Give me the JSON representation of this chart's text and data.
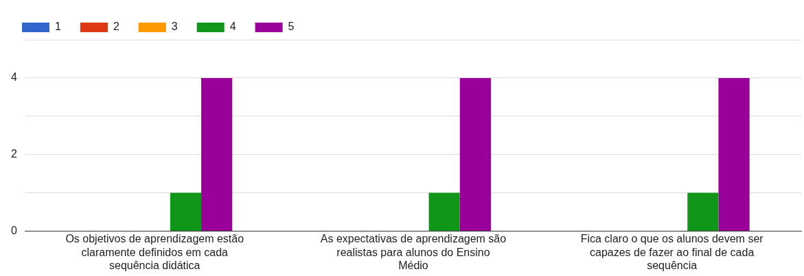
{
  "chart_data": {
    "type": "bar",
    "categories": [
      "Os objetivos de aprendizagem estão claramente definidos em cada sequência didática",
      "As expectativas de aprendizagem são realistas para alunos do Ensino Médio",
      "Fica claro o que os alunos devem ser capazes de fazer ao final de cada sequência"
    ],
    "series": [
      {
        "name": "1",
        "color": "#3366cc",
        "values": [
          0,
          0,
          0
        ]
      },
      {
        "name": "2",
        "color": "#dc3912",
        "values": [
          0,
          0,
          0
        ]
      },
      {
        "name": "3",
        "color": "#ff9900",
        "values": [
          0,
          0,
          0
        ]
      },
      {
        "name": "4",
        "color": "#109618",
        "values": [
          1,
          1,
          1
        ]
      },
      {
        "name": "5",
        "color": "#990099",
        "values": [
          4,
          4,
          4
        ]
      }
    ],
    "ylim": [
      0,
      5
    ],
    "yticks": [
      0,
      {
        "value": 1,
        "label": null
      },
      2,
      {
        "value": 3,
        "label": null
      },
      4,
      {
        "value": 5,
        "label": null
      }
    ],
    "grid": "y",
    "legend": "top left"
  }
}
